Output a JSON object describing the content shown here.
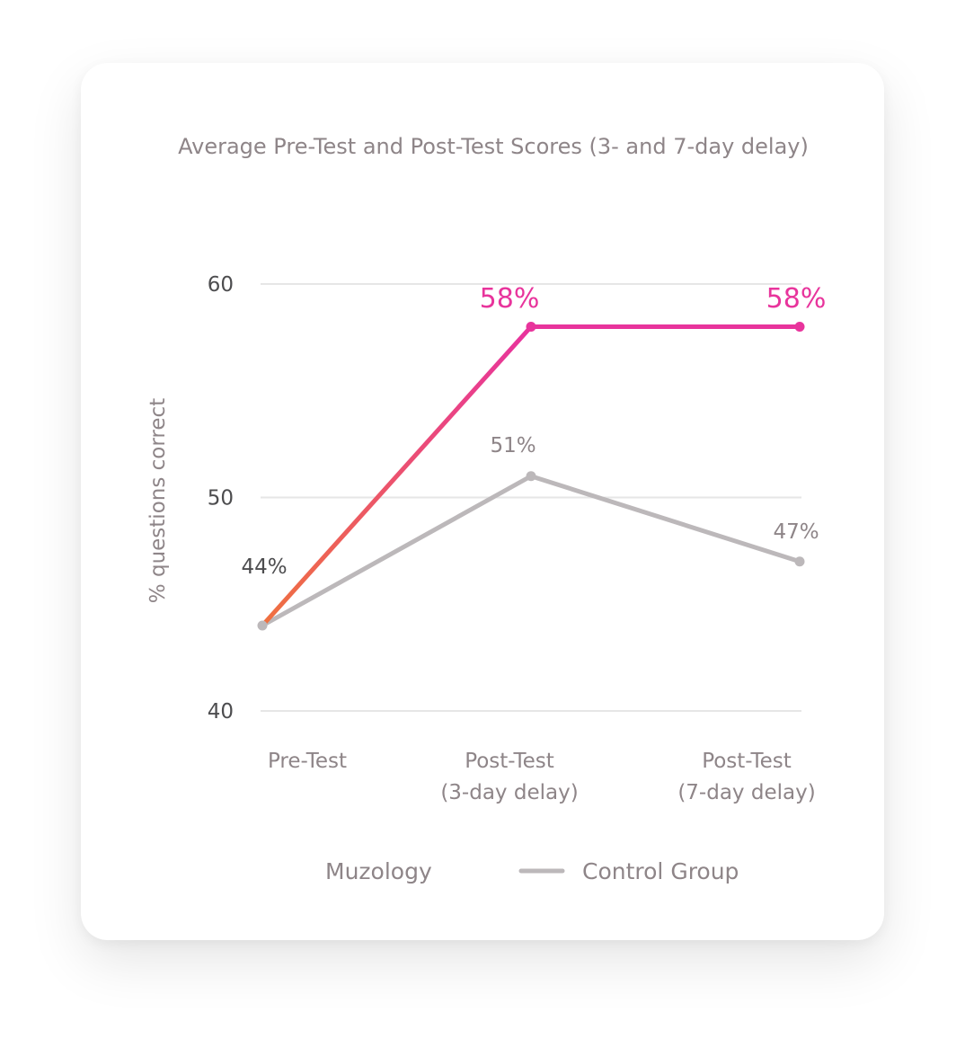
{
  "chart_data": {
    "type": "line",
    "title": "Average Pre-Test and Post-Test Scores (3- and 7-day delay)",
    "ylabel": "% questions correct",
    "xlabel": "",
    "categories": [
      [
        "Pre-Test"
      ],
      [
        "Post-Test",
        "(3-day delay)"
      ],
      [
        "Post-Test",
        "(7-day delay)"
      ]
    ],
    "ylim": [
      40,
      60
    ],
    "yticks": [
      60,
      50,
      40
    ],
    "grid": true,
    "legend_position": "bottom",
    "series": [
      {
        "name": "Muzology",
        "values": [
          44,
          58,
          58
        ],
        "labels": [
          "",
          "58%",
          "58%"
        ],
        "color": "#e8349c",
        "gradient_start": "#ef7040"
      },
      {
        "name": "Control Group",
        "values": [
          44,
          51,
          47
        ],
        "labels": [
          "44%",
          "51%",
          "47%"
        ],
        "color": "#bcb8ba"
      }
    ],
    "colors": {
      "grid": "#e6e6e6",
      "text": "#8e8588",
      "tick": "#4d4d4f"
    }
  }
}
